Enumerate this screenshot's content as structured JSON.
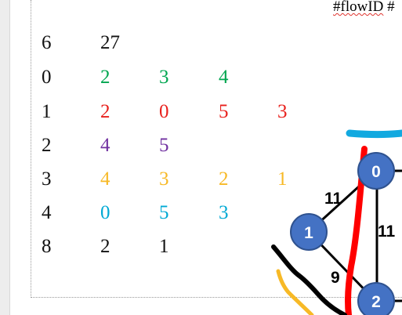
{
  "header": {
    "tag_prefix": "#flowID",
    "tag_suffix": " #"
  },
  "colors": {
    "black": "#111111",
    "green": "#00a650",
    "red": "#e8201c",
    "purple": "#7030a0",
    "yellow": "#f7b926",
    "cyan": "#00a9d4",
    "node_fill": "#4472c4",
    "annotation_red": "#ff0000",
    "annotation_black": "#000000",
    "annotation_yellow": "#f7b926",
    "annotation_cyan": "#12a9e0"
  },
  "rows": [
    {
      "cells": [
        {
          "text": "6",
          "color": "black"
        },
        {
          "text": "27",
          "color": "black"
        }
      ]
    },
    {
      "cells": [
        {
          "text": "0",
          "color": "black"
        },
        {
          "text": "2",
          "color": "green"
        },
        {
          "text": "3",
          "color": "green"
        },
        {
          "text": "4",
          "color": "green"
        }
      ]
    },
    {
      "cells": [
        {
          "text": "1",
          "color": "black"
        },
        {
          "text": "2",
          "color": "red"
        },
        {
          "text": "0",
          "color": "red"
        },
        {
          "text": "5",
          "color": "red"
        },
        {
          "text": "3",
          "color": "red"
        }
      ]
    },
    {
      "cells": [
        {
          "text": "2",
          "color": "black"
        },
        {
          "text": "4",
          "color": "purple"
        },
        {
          "text": "5",
          "color": "purple"
        }
      ]
    },
    {
      "cells": [
        {
          "text": "3",
          "color": "black"
        },
        {
          "text": "4",
          "color": "yellow"
        },
        {
          "text": "3",
          "color": "yellow"
        },
        {
          "text": "2",
          "color": "yellow"
        },
        {
          "text": "1",
          "color": "yellow"
        }
      ]
    },
    {
      "cells": [
        {
          "text": "4",
          "color": "black"
        },
        {
          "text": "0",
          "color": "cyan"
        },
        {
          "text": "5",
          "color": "cyan"
        },
        {
          "text": "3",
          "color": "cyan"
        }
      ]
    },
    {
      "cells": [
        {
          "text": "8",
          "color": "black"
        },
        {
          "text": "2",
          "color": "black"
        },
        {
          "text": "1",
          "color": "black"
        }
      ]
    }
  ],
  "graph": {
    "nodes": [
      {
        "label": "0"
      },
      {
        "label": "1"
      },
      {
        "label": "2"
      }
    ],
    "edge_labels": [
      {
        "label": "11"
      },
      {
        "label": "11"
      },
      {
        "label": "9"
      }
    ]
  }
}
